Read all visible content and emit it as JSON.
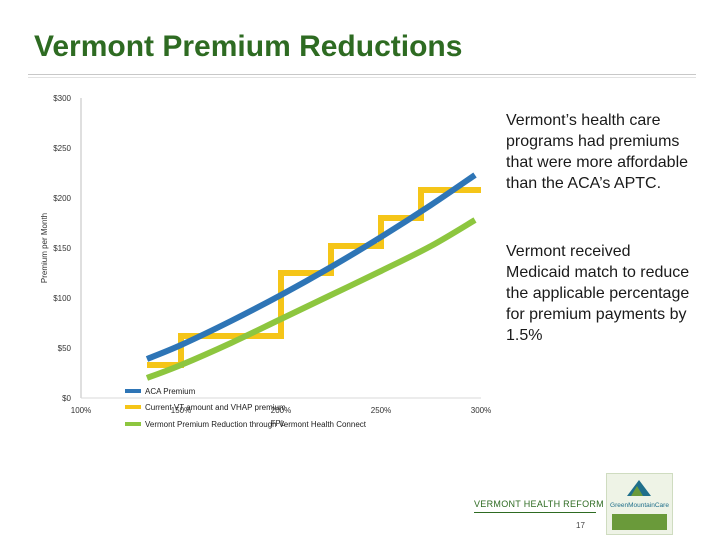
{
  "slide": {
    "title": "Vermont Premium Reductions",
    "paragraphs": [
      "Vermont’s health care programs had premiums that were more affordable than the ACA’s APTC.",
      "Vermont received Medicaid match to reduce the applicable percentage for premium payments by 1.5%"
    ],
    "footer": "VERMONT HEALTH REFORM",
    "page_number": "17",
    "logo": {
      "name": "green-mountain-care-logo",
      "text": "GreenMountainCare",
      "colors": [
        "#1f6f8b",
        "#6a9a3a"
      ]
    }
  },
  "chart_data": {
    "type": "line",
    "ylabel": "Premium per Month",
    "xlabel": "FPL",
    "ylim": [
      0,
      300
    ],
    "xlim": [
      100,
      300
    ],
    "y_ticks": [
      "$0",
      "$50",
      "$100",
      "$150",
      "$200",
      "$250",
      "$300"
    ],
    "y_tick_values": [
      0,
      50,
      100,
      150,
      200,
      250,
      300
    ],
    "x_ticks": [
      "100%",
      "150%",
      "200%",
      "250%",
      "300%"
    ],
    "x_tick_values": [
      100,
      150,
      200,
      250,
      300
    ],
    "grid": false,
    "legend_position": "bottom",
    "series": [
      {
        "name": "ACA Premium",
        "color": "#2e75b6",
        "style": "smooth",
        "x": [
          133,
          150,
          175,
          200,
          225,
          250,
          275,
          297
        ],
        "y": [
          39,
          53,
          77,
          103,
          131,
          161,
          193,
          223
        ]
      },
      {
        "name": "Current VT amount and VHAP premium",
        "color": "#f5c518",
        "style": "step",
        "x": [
          133,
          150,
          150,
          185,
          185,
          200,
          200,
          225,
          225,
          250,
          250,
          270,
          270,
          290,
          290,
          300
        ],
        "y": [
          33,
          33,
          62,
          62,
          62,
          62,
          125,
          125,
          152,
          152,
          180,
          180,
          208,
          208,
          208,
          208
        ]
      },
      {
        "name": "Vermont Premium Reduction through Vermont Health Connect",
        "color": "#8dc63f",
        "style": "smooth",
        "x": [
          133,
          150,
          175,
          200,
          225,
          250,
          275,
          297
        ],
        "y": [
          20,
          33,
          55,
          79,
          103,
          127,
          152,
          178
        ]
      }
    ]
  }
}
